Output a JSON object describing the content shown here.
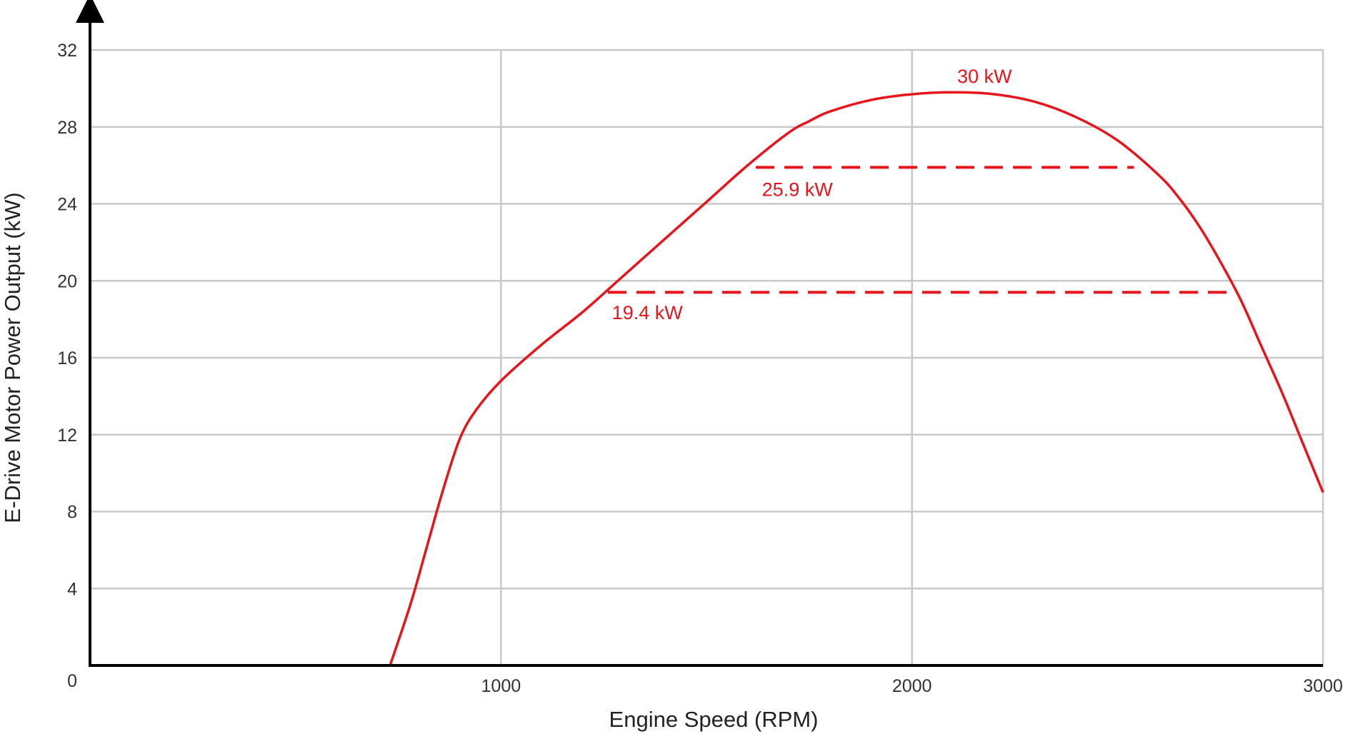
{
  "chart_data": {
    "type": "line",
    "title": "",
    "xlabel": "Engine Speed (RPM)",
    "ylabel": "E-Drive Motor Power Output (kW)",
    "xlim": [
      0,
      3000
    ],
    "ylim": [
      0,
      32
    ],
    "x_ticks": [
      1000,
      2000,
      3000
    ],
    "y_ticks": [
      0,
      4,
      8,
      12,
      16,
      20,
      24,
      28,
      32
    ],
    "grid": true,
    "legend": "none",
    "colors": {
      "curve": "#e8141b",
      "grid": "#c8c8c8",
      "axis": "#000000"
    },
    "series": [
      {
        "x": [
          730,
          780,
          820,
          860,
          900,
          940,
          1000,
          1100,
          1200,
          1300,
          1400,
          1500,
          1600,
          1700,
          1750,
          1800,
          1900,
          2000,
          2100,
          2200,
          2300,
          2400,
          2500,
          2600,
          2650,
          2700,
          2750,
          2800,
          2850,
          2900,
          2950,
          3000
        ],
        "y": [
          0,
          3.2,
          6.2,
          9.2,
          11.8,
          13.3,
          14.8,
          16.7,
          18.4,
          20.3,
          22.2,
          24.1,
          26.0,
          27.7,
          28.3,
          28.8,
          29.4,
          29.7,
          29.8,
          29.7,
          29.3,
          28.5,
          27.3,
          25.5,
          24.3,
          22.8,
          21.0,
          19.0,
          16.6,
          14.2,
          11.6,
          9.0
        ]
      }
    ],
    "annotations": [
      {
        "text": "30 kW",
        "x": 2110,
        "y": 30.3
      },
      {
        "text": "25.9 kW",
        "x": 1635,
        "y": 24.4
      },
      {
        "text": "19.4 kW",
        "x": 1270,
        "y": 18.0
      }
    ],
    "reference_lines": [
      {
        "y": 25.9,
        "x_start": 1620,
        "x_end": 2540
      },
      {
        "y": 19.4,
        "x_start": 1260,
        "x_end": 2790
      }
    ]
  }
}
